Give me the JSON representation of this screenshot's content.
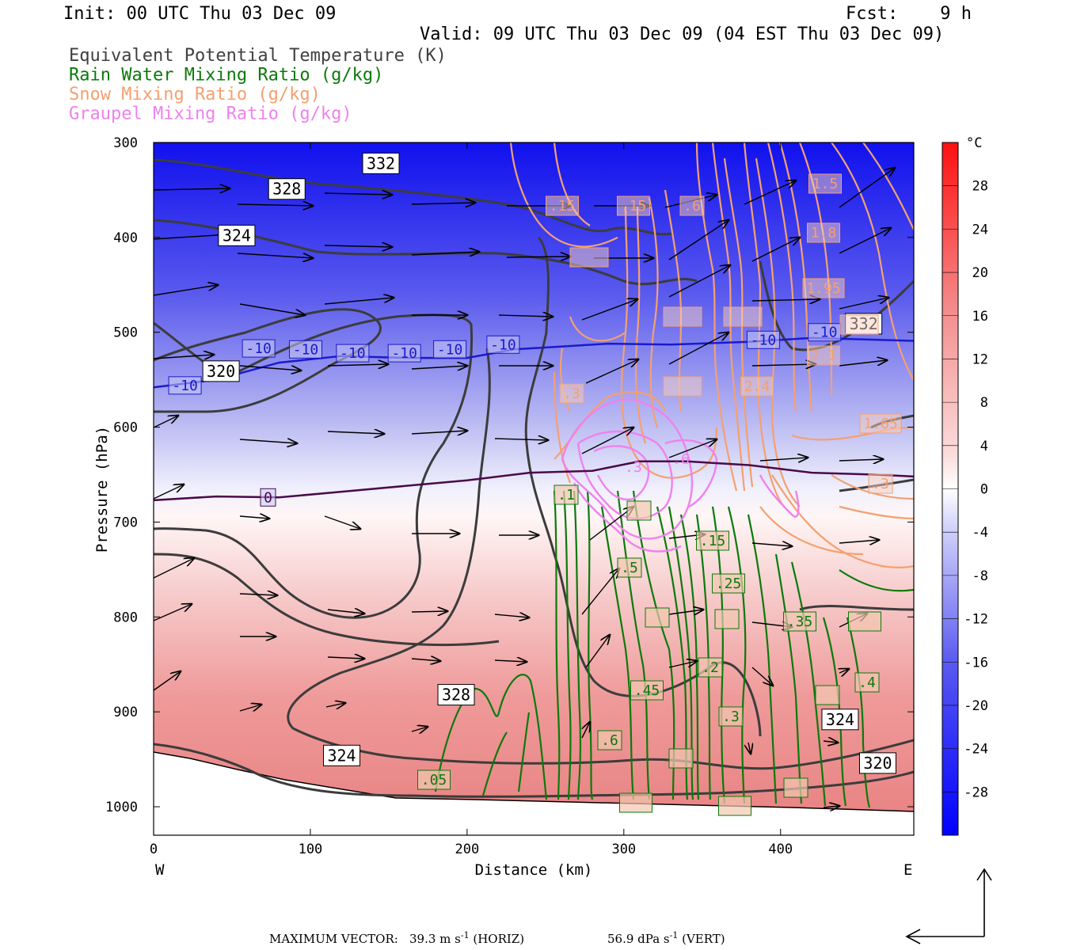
{
  "header": {
    "init": "Init: 00 UTC Thu 03 Dec 09",
    "fcst": "Fcst:    9 h",
    "valid": "Valid: 09 UTC Thu 03 Dec 09 (04 EST Thu 03 Dec 09)"
  },
  "fields": [
    {
      "label": "Equivalent Potential Temperature (K)",
      "color": "#404040"
    },
    {
      "label": "Rain Water Mixing Ratio (g/kg)",
      "color": "#0b7a0b"
    },
    {
      "label": "Snow Mixing Ratio (g/kg)",
      "color": "#f4a070"
    },
    {
      "label": "Graupel Mixing Ratio (g/kg)",
      "color": "#ee82ee"
    }
  ],
  "axes": {
    "ylabel": "Pressure (hPa)",
    "xlabel": "Distance (km)",
    "west": "W",
    "east": "E",
    "colorbar_unit": "°C"
  },
  "footer": {
    "prefix": "MAXIMUM VECTOR:",
    "horiz": "39.3 m s",
    "horiz_exp": "-1",
    "horiz_suffix": " (HORIZ)",
    "vert": "56.9 dPa s",
    "vert_exp": "-1",
    "vert_suffix": " (VERT)"
  },
  "chart_data": {
    "type": "heatmap",
    "description_type": "vertical cross-section",
    "x": {
      "ticks": [
        0,
        100,
        200,
        300,
        400
      ],
      "lim": [
        0,
        485
      ]
    },
    "y": {
      "ticks": [
        300,
        400,
        500,
        600,
        700,
        800,
        900,
        1000
      ],
      "lim": [
        300,
        1030
      ],
      "inverted": true
    },
    "colorbar": {
      "ticks": [
        28,
        24,
        20,
        16,
        12,
        8,
        4,
        0,
        -4,
        -8,
        -12,
        -16,
        -20,
        -24,
        -28
      ],
      "range": [
        -32,
        32
      ],
      "cold_color": "#0000ff",
      "zero_color": "#ffffff",
      "warm_color": "#ff2020"
    },
    "temperature_isotherms": [
      {
        "value": "-10",
        "color": "#1a1acc",
        "points": [
          [
            0,
            558
          ],
          [
            40,
            550
          ],
          [
            80,
            532
          ],
          [
            120,
            525
          ],
          [
            160,
            527
          ],
          [
            200,
            527
          ],
          [
            230,
            518
          ],
          [
            260,
            515
          ],
          [
            290,
            512
          ],
          [
            330,
            513
          ],
          [
            380,
            510
          ],
          [
            420,
            506
          ],
          [
            485,
            509
          ]
        ],
        "labels": [
          [
            20,
            556
          ],
          [
            67,
            517
          ],
          [
            97,
            518
          ],
          [
            127,
            522
          ],
          [
            160,
            522
          ],
          [
            189,
            518
          ],
          [
            223,
            513
          ],
          [
            389,
            508
          ],
          [
            428,
            500
          ]
        ]
      },
      {
        "value": "0",
        "color": "#4a0a4a",
        "points": [
          [
            0,
            677
          ],
          [
            40,
            673
          ],
          [
            80,
            674
          ],
          [
            120,
            668
          ],
          [
            160,
            662
          ],
          [
            200,
            656
          ],
          [
            240,
            648
          ],
          [
            280,
            646
          ],
          [
            310,
            636
          ],
          [
            340,
            636
          ],
          [
            380,
            640
          ],
          [
            420,
            648
          ],
          [
            460,
            650
          ],
          [
            485,
            652
          ]
        ],
        "labels": [
          [
            73,
            674
          ]
        ]
      }
    ],
    "theta_e_contours": [
      {
        "value": "332",
        "labels": [
          [
            145,
            322
          ]
        ]
      },
      {
        "value": "328",
        "labels": [
          [
            85,
            349
          ],
          [
            193,
            882
          ]
        ]
      },
      {
        "value": "324",
        "labels": [
          [
            53,
            398
          ],
          [
            120,
            946
          ],
          [
            438,
            908
          ]
        ]
      },
      {
        "value": "320",
        "labels": [
          [
            43,
            541
          ],
          [
            462,
            954
          ]
        ]
      },
      {
        "value": "332",
        "labels": [
          [
            453,
            491
          ]
        ]
      }
    ],
    "rain_labels": [
      ".05",
      ".1",
      ".15",
      ".2",
      ".25",
      ".3",
      ".35",
      ".4",
      ".45",
      ".5",
      ".6"
    ],
    "snow_labels": [
      ".3",
      ".15",
      ".6",
      ".15",
      "1.5",
      "1.8",
      "1.95",
      "2.1",
      "2.4",
      "1.65",
      ".3"
    ],
    "graupel_labels": [
      ".3",
      ".6"
    ]
  }
}
